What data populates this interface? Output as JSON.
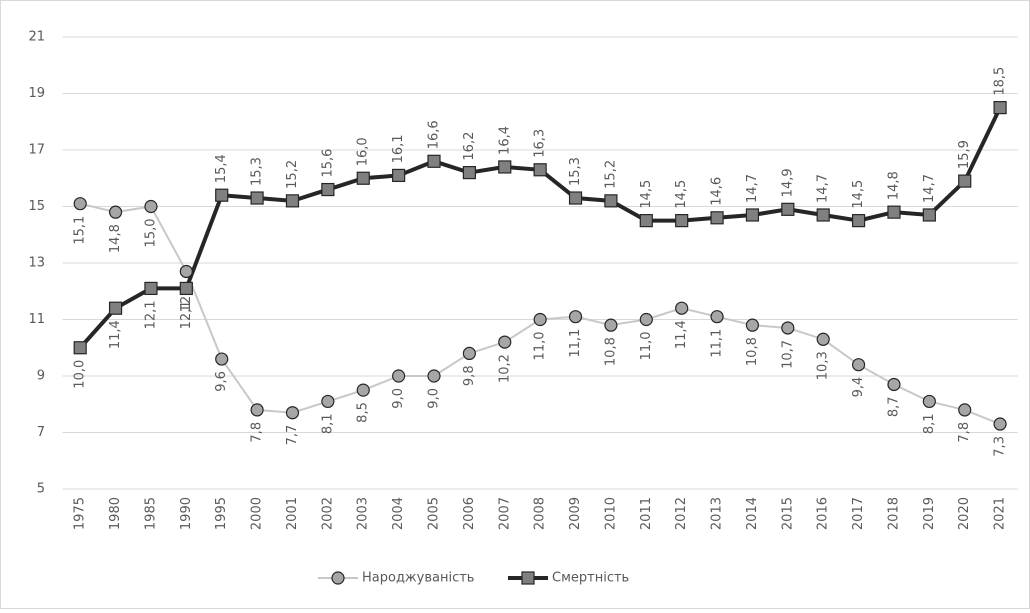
{
  "chart_data": {
    "type": "line",
    "categories": [
      "1975",
      "1980",
      "1985",
      "1990",
      "1995",
      "2000",
      "2001",
      "2002",
      "2003",
      "2004",
      "2005",
      "2006",
      "2007",
      "2008",
      "2009",
      "2010",
      "2011",
      "2012",
      "2013",
      "2014",
      "2015",
      "2016",
      "2017",
      "2018",
      "2019",
      "2020",
      "2021"
    ],
    "series": [
      {
        "name": "Народжуваність",
        "color": "#c8c8c8",
        "marker": "circle",
        "marker_color": "#a6a6a6",
        "values": [
          15.1,
          14.8,
          15.0,
          12.7,
          9.6,
          7.8,
          7.7,
          8.1,
          8.5,
          9.0,
          9.0,
          9.8,
          10.2,
          11.0,
          11.1,
          10.8,
          11.0,
          11.4,
          11.1,
          10.8,
          10.7,
          10.3,
          9.4,
          8.7,
          8.1,
          7.8,
          7.3
        ],
        "value_labels": [
          "15,1",
          "14,8",
          "15,0",
          "12,7",
          "9,6",
          "7,8",
          "7,7",
          "8,1",
          "8,5",
          "9,0",
          "9,0",
          "9,8",
          "10,2",
          "11,0",
          "11,1",
          "10,8",
          "11,0",
          "11,4",
          "11,1",
          "10,8",
          "10,7",
          "10,3",
          "9,4",
          "8,7",
          "8,1",
          "7,8",
          "7,3"
        ]
      },
      {
        "name": "Смертність",
        "color": "#262626",
        "marker": "square",
        "marker_color": "#808080",
        "values": [
          10.0,
          11.4,
          12.1,
          12.1,
          15.4,
          15.3,
          15.2,
          15.6,
          16.0,
          16.1,
          16.6,
          16.2,
          16.4,
          16.3,
          15.3,
          15.2,
          14.5,
          14.5,
          14.6,
          14.7,
          14.9,
          14.7,
          14.5,
          14.8,
          14.7,
          15.9,
          18.5
        ],
        "value_labels": [
          "10,0",
          "11,4",
          "12,1",
          "12,1",
          "15,4",
          "15,3",
          "15,2",
          "15,6",
          "16,0",
          "16,1",
          "16,6",
          "16,2",
          "16,4",
          "16,3",
          "15,3",
          "15,2",
          "14,5",
          "14,5",
          "14,6",
          "14,7",
          "14,9",
          "14,7",
          "14,5",
          "14,8",
          "14,7",
          "15,9",
          "18,5"
        ]
      }
    ],
    "ylim": [
      5,
      21
    ],
    "yticks": [
      5,
      7,
      9,
      11,
      13,
      15,
      17,
      19,
      21
    ],
    "grid": true,
    "legend": "bottom"
  }
}
